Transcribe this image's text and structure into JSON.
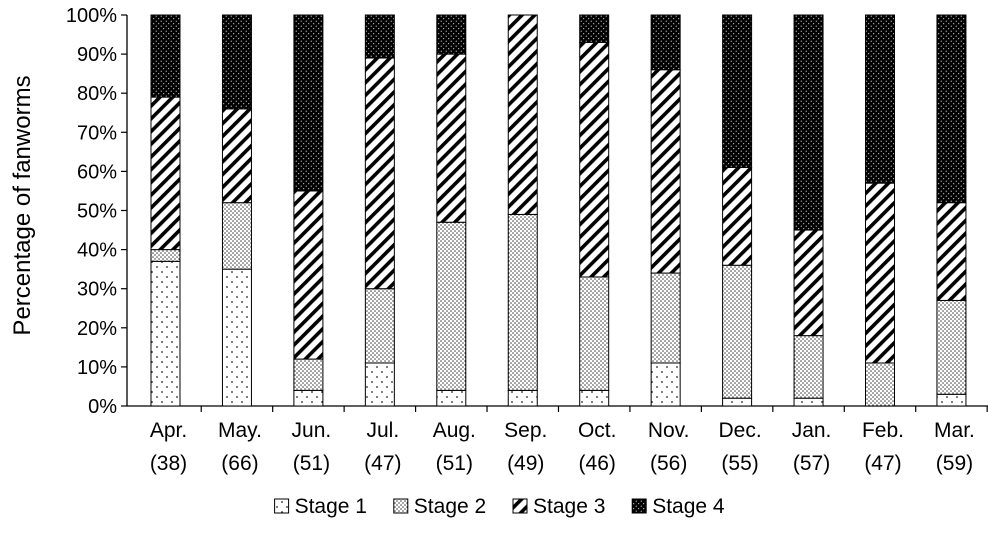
{
  "chart_data": {
    "type": "bar",
    "stacked": true,
    "percent_stacked": true,
    "title": "",
    "ylabel": "Percentage of fanworms",
    "xlabel": "",
    "ylim": [
      0,
      100
    ],
    "y_ticks": [
      "0%",
      "10%",
      "20%",
      "30%",
      "40%",
      "50%",
      "60%",
      "70%",
      "80%",
      "90%",
      "100%"
    ],
    "grid": false,
    "legend_position": "bottom",
    "categories": [
      {
        "month": "Apr.",
        "n": "(38)"
      },
      {
        "month": "May.",
        "n": "(66)"
      },
      {
        "month": "Jun.",
        "n": "(51)"
      },
      {
        "month": "Jul.",
        "n": "(47)"
      },
      {
        "month": "Aug.",
        "n": "(51)"
      },
      {
        "month": "Sep.",
        "n": "(49)"
      },
      {
        "month": "Oct.",
        "n": "(46)"
      },
      {
        "month": "Nov.",
        "n": "(56)"
      },
      {
        "month": "Dec.",
        "n": "(55)"
      },
      {
        "month": "Jan.",
        "n": "(57)"
      },
      {
        "month": "Feb.",
        "n": "(47)"
      },
      {
        "month": "Mar.",
        "n": "(59)"
      }
    ],
    "series": [
      {
        "name": "Stage 1",
        "pattern": "sparse-dots",
        "values": [
          37,
          35,
          4,
          11,
          4,
          4,
          4,
          11,
          2,
          2,
          0,
          3
        ]
      },
      {
        "name": "Stage 2",
        "pattern": "dense-dots",
        "values": [
          3,
          17,
          8,
          19,
          43,
          45,
          29,
          23,
          34,
          16,
          11,
          24
        ]
      },
      {
        "name": "Stage 3",
        "pattern": "diagonal-hatch",
        "values": [
          39,
          24,
          43,
          59,
          43,
          51,
          60,
          52,
          25,
          27,
          46,
          25
        ]
      },
      {
        "name": "Stage 4",
        "pattern": "black-dots",
        "values": [
          21,
          24,
          45,
          11,
          10,
          0,
          7,
          14,
          39,
          55,
          43,
          48
        ]
      }
    ]
  }
}
